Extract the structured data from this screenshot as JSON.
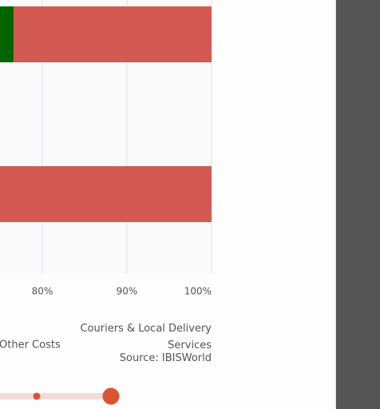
{
  "chart_data": {
    "type": "stacked-bar-horizontal",
    "title": "Couriers & Local Delivery Services",
    "source": "Source: IBISWorld",
    "categories": [
      null,
      null
    ],
    "series": [
      {
        "color": "#006400",
        "values": [
          76.6,
          null
        ]
      },
      {
        "name": "Other Costs",
        "color": "#d35a52",
        "values": [
          23.4,
          100
        ]
      }
    ],
    "xlim": [
      0,
      100
    ],
    "xticks": [
      {
        "value": 80,
        "label": "80%"
      },
      {
        "value": 90,
        "label": "90%"
      },
      {
        "value": 100,
        "label": "100%"
      }
    ],
    "grid": true
  }
}
